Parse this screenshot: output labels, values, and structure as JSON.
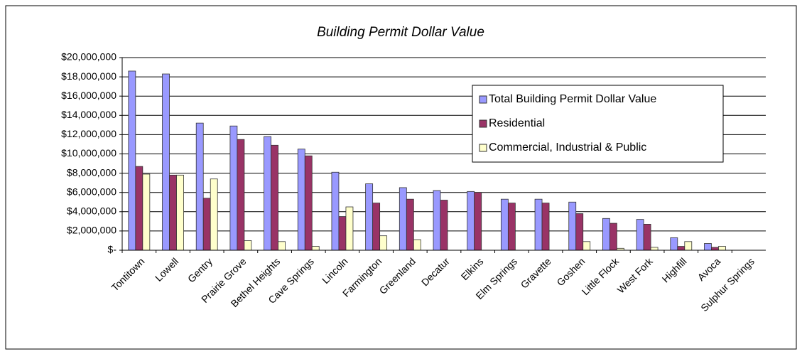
{
  "chart_data": {
    "type": "bar",
    "title": "Building Permit Dollar Value",
    "categories": [
      "Tontitown",
      "Lowell",
      "Gentry",
      "Prairie Grove",
      "Bethel Heights",
      "Cave Springs",
      "Lincoln",
      "Farmington",
      "Greenland",
      "Decatur",
      "Elkins",
      "Elm Springs",
      "Gravette",
      "Goshen",
      "Little Flock",
      "West Fork",
      "Highfill",
      "Avoca",
      "Sulphur Springs"
    ],
    "series": [
      {
        "name": "Total Building Permit Dollar Value",
        "color": "#9999ff",
        "values": [
          18600000,
          18300000,
          13200000,
          12900000,
          11800000,
          10500000,
          8100000,
          6900000,
          6500000,
          6200000,
          6100000,
          5300000,
          5300000,
          5000000,
          3300000,
          3200000,
          1300000,
          700000,
          0
        ]
      },
      {
        "name": "Residential",
        "color": "#993366",
        "values": [
          8700000,
          7800000,
          5400000,
          11500000,
          10900000,
          9800000,
          3500000,
          4900000,
          5300000,
          5200000,
          6000000,
          4900000,
          4900000,
          3800000,
          2800000,
          2700000,
          400000,
          300000,
          0
        ]
      },
      {
        "name": "Commercial, Industrial & Public",
        "color": "#ffffcc",
        "values": [
          7900000,
          7800000,
          7400000,
          1000000,
          900000,
          400000,
          4500000,
          1500000,
          1100000,
          0,
          0,
          0,
          0,
          900000,
          200000,
          300000,
          900000,
          400000,
          0
        ]
      }
    ],
    "ylim": [
      0,
      20000000
    ],
    "yticks": [
      {
        "value": 0,
        "label": "$-"
      },
      {
        "value": 2000000,
        "label": "$2,000,000"
      },
      {
        "value": 4000000,
        "label": "$4,000,000"
      },
      {
        "value": 6000000,
        "label": "$6,000,000"
      },
      {
        "value": 8000000,
        "label": "$8,000,000"
      },
      {
        "value": 10000000,
        "label": "$10,000,000"
      },
      {
        "value": 12000000,
        "label": "$12,000,000"
      },
      {
        "value": 14000000,
        "label": "$14,000,000"
      },
      {
        "value": 16000000,
        "label": "$16,000,000"
      },
      {
        "value": 18000000,
        "label": "$18,000,000"
      },
      {
        "value": 20000000,
        "label": "$20,000,000"
      }
    ],
    "grid": true,
    "legend": "upper right"
  }
}
